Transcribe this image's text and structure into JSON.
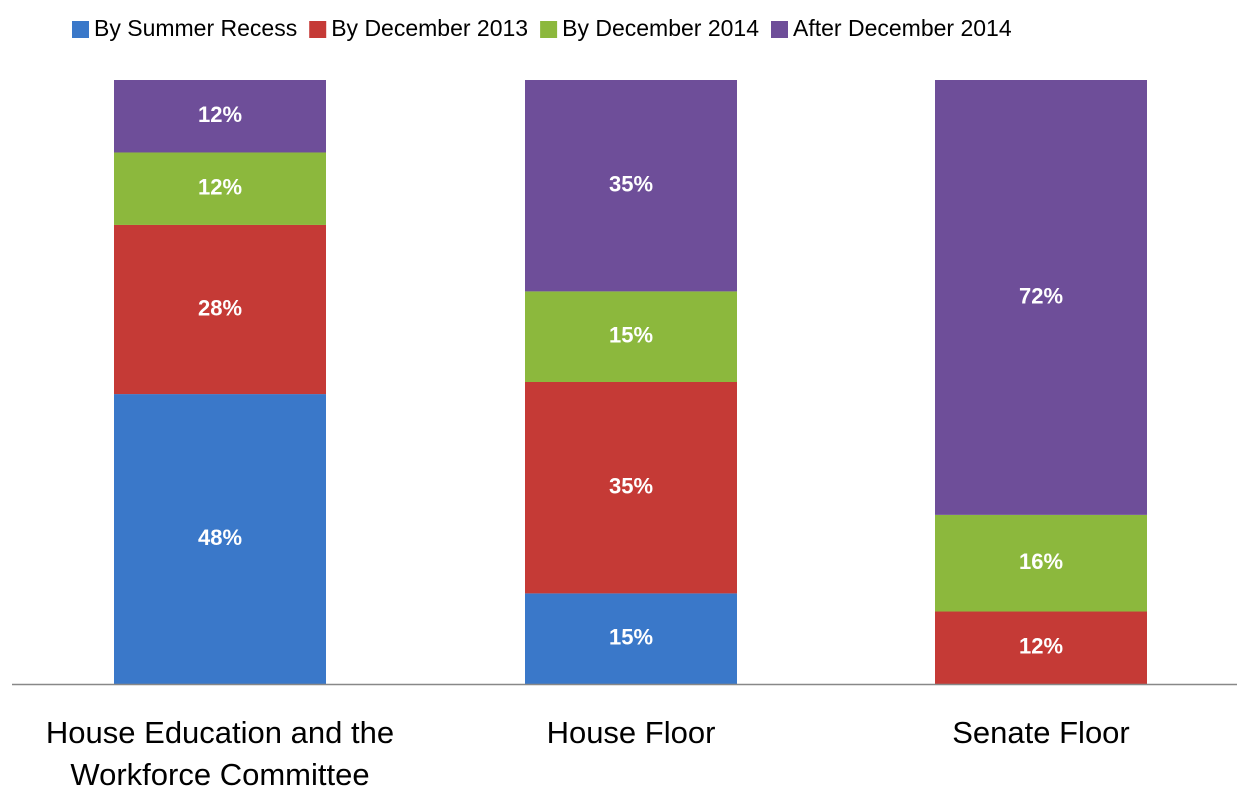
{
  "chart_data": {
    "type": "bar",
    "stacked": true,
    "categories": [
      "House Education and the Workforce Committee",
      "House Floor",
      "Senate Floor"
    ],
    "series": [
      {
        "name": "By Summer Recess",
        "color": "#3a78c9",
        "values": [
          48,
          15,
          null
        ],
        "value_labels": [
          "48%",
          "15%",
          null
        ]
      },
      {
        "name": "By December 2013",
        "color": "#c53a36",
        "values": [
          28,
          35,
          12
        ],
        "value_labels": [
          "28%",
          "35%",
          "12%"
        ]
      },
      {
        "name": "By December 2014",
        "color": "#8cb83d",
        "values": [
          12,
          15,
          16
        ],
        "value_labels": [
          "12%",
          "15%",
          "16%"
        ]
      },
      {
        "name": "After December 2014",
        "color": "#6e4e99",
        "values": [
          12,
          35,
          72
        ],
        "value_labels": [
          "12%",
          "35%",
          "72%"
        ]
      }
    ],
    "ylim": [
      0,
      100
    ],
    "legend": "top"
  }
}
